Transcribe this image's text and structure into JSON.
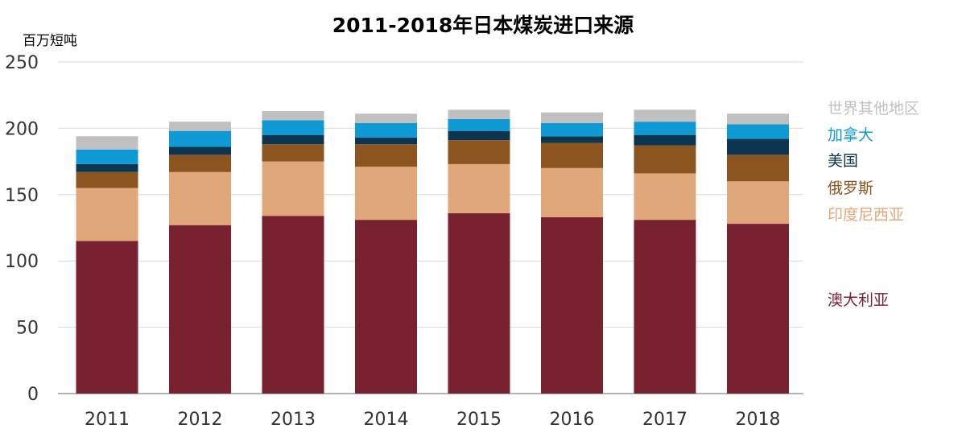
{
  "chart_data": {
    "type": "bar",
    "stacked": true,
    "title": "2011-2018年日本煤炭进口来源",
    "ylabel": "百万短吨",
    "xlabel": "",
    "ylim": [
      0,
      250
    ],
    "yticks": [
      0,
      50,
      100,
      150,
      200,
      250
    ],
    "grid": true,
    "legend_position": "right",
    "categories": [
      "2011",
      "2012",
      "2013",
      "2014",
      "2015",
      "2016",
      "2017",
      "2018"
    ],
    "series": [
      {
        "name": "澳大利亚",
        "color": "#78222f",
        "values": [
          115,
          127,
          134,
          131,
          136,
          133,
          131,
          128
        ]
      },
      {
        "name": "印度尼西亚",
        "color": "#e0a87a",
        "values": [
          40,
          40,
          41,
          40,
          37,
          37,
          35,
          32
        ]
      },
      {
        "name": "俄罗斯",
        "color": "#8c541f",
        "values": [
          12,
          13,
          13,
          17,
          18,
          19,
          21,
          20
        ]
      },
      {
        "name": "美国",
        "color": "#0d3550",
        "values": [
          6,
          6,
          7,
          5,
          7,
          5,
          8,
          12
        ]
      },
      {
        "name": "加拿大",
        "color": "#0f9ad6",
        "values": [
          11,
          12,
          11,
          11,
          9,
          10,
          10,
          11
        ]
      },
      {
        "name": "世界其他地区",
        "color": "#c0c0c0",
        "values": [
          10,
          7,
          7,
          7,
          7,
          8,
          9,
          8
        ]
      }
    ]
  }
}
